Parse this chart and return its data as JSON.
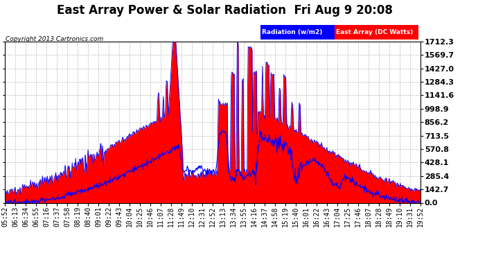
{
  "title": "East Array Power & Solar Radiation  Fri Aug 9 20:08",
  "copyright": "Copyright 2013 Cartronics.com",
  "legend_radiation": "Radiation (w/m2)",
  "legend_array": "East Array (DC Watts)",
  "yticks": [
    0.0,
    142.7,
    285.4,
    428.1,
    570.8,
    713.5,
    856.2,
    998.9,
    1141.6,
    1284.3,
    1427.0,
    1569.7,
    1712.3
  ],
  "ymax": 1712.3,
  "background_color": "#ffffff",
  "plot_bg_color": "#ffffff",
  "grid_color": "#aaaaaa",
  "radiation_color": "#0000ff",
  "array_fill_color": "#ff0000",
  "xtick_labels": [
    "05:52",
    "06:13",
    "06:34",
    "06:55",
    "07:16",
    "07:37",
    "07:58",
    "08:19",
    "08:40",
    "09:01",
    "09:22",
    "09:43",
    "10:04",
    "10:25",
    "10:46",
    "11:07",
    "11:28",
    "11:49",
    "12:10",
    "12:31",
    "12:52",
    "13:13",
    "13:34",
    "13:55",
    "14:16",
    "14:37",
    "14:58",
    "15:19",
    "15:40",
    "16:01",
    "16:22",
    "16:43",
    "17:04",
    "17:25",
    "17:46",
    "18:07",
    "18:28",
    "18:49",
    "19:10",
    "19:31",
    "19:52"
  ],
  "title_fontsize": 12,
  "tick_fontsize": 7,
  "ytick_fontsize": 8
}
